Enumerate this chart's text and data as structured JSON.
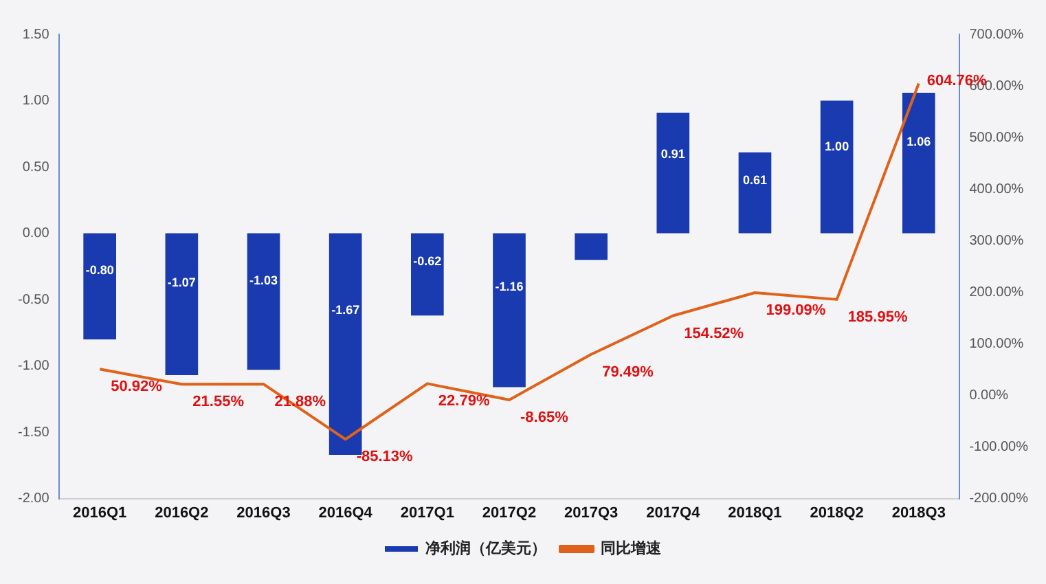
{
  "chart_data": {
    "type": "bar",
    "categories": [
      "2016Q1",
      "2016Q2",
      "2016Q3",
      "2016Q4",
      "2017Q1",
      "2017Q2",
      "2017Q3",
      "2017Q4",
      "2018Q1",
      "2018Q2",
      "2018Q3"
    ],
    "series": [
      {
        "name": "净利润（亿美元）",
        "color": "#1a3bb0",
        "values": [
          -0.8,
          -1.07,
          -1.03,
          -1.67,
          -0.62,
          -1.16,
          -0.2,
          0.91,
          0.61,
          1.0,
          1.06
        ],
        "value_labels": [
          "-0.80",
          "-1.07",
          "-1.03",
          "-1.67",
          "-0.62",
          "-1.16",
          null,
          "0.91",
          "0.61",
          "1.00",
          "1.06"
        ]
      },
      {
        "name": "同比增速",
        "type": "line",
        "axis": "y2",
        "color": "#e0621a",
        "values": [
          50.92,
          21.55,
          21.88,
          -85.13,
          22.79,
          -8.65,
          79.49,
          154.52,
          199.09,
          185.95,
          604.76
        ],
        "value_labels": [
          "50.92%",
          "21.55%",
          "21.88%",
          "-85.13%",
          "22.79%",
          "-8.65%",
          "79.49%",
          "154.52%",
          "199.09%",
          "185.95%",
          "604.76%"
        ]
      }
    ],
    "ylim": [
      -2,
      1.5
    ],
    "yticks": [
      {
        "value": 1.5,
        "label": "1.50"
      },
      {
        "value": 1,
        "label": "1.00"
      },
      {
        "value": 0.5,
        "label": "0.50"
      },
      {
        "value": 0,
        "label": "0.00"
      },
      {
        "value": -0.5,
        "label": "-0.50"
      },
      {
        "value": -1,
        "label": "-1.00"
      },
      {
        "value": -1.5,
        "label": "-1.50"
      },
      {
        "value": -2,
        "label": "-2.00"
      }
    ],
    "y2lim": [
      -200,
      700
    ],
    "y2ticks": [
      {
        "value": 700,
        "label": "700.00%"
      },
      {
        "value": 600,
        "label": "600.00%"
      },
      {
        "value": 500,
        "label": "500.00%"
      },
      {
        "value": 400,
        "label": "400.00%"
      },
      {
        "value": 300,
        "label": "300.00%"
      },
      {
        "value": 200,
        "label": "200.00%"
      },
      {
        "value": 100,
        "label": "100.00%"
      },
      {
        "value": 0,
        "label": "0.00%"
      },
      {
        "value": -100,
        "label": "-100.00%"
      },
      {
        "value": -200,
        "label": "-200.00%"
      }
    ],
    "legend": "bottom",
    "grid": false,
    "marker": "none"
  }
}
